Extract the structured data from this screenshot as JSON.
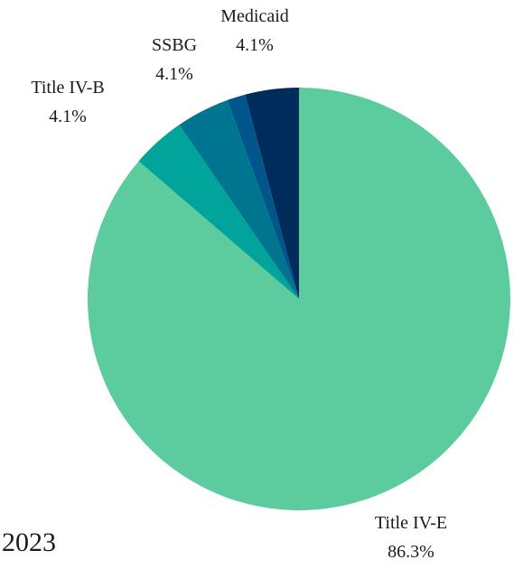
{
  "chart_data": {
    "type": "pie",
    "title": "2023",
    "categories": [
      "Title IV-E",
      "Title IV-B",
      "SSBG",
      null,
      "Medicaid"
    ],
    "values": [
      86.3,
      4.1,
      4.1,
      1.4,
      4.1
    ],
    "value_labels": [
      "86.3%",
      "4.1%",
      "4.1%",
      null,
      "4.1%"
    ],
    "colors": [
      "#5ccc9e",
      "#00a49a",
      "#00758f",
      "#00568a",
      "#002c5c"
    ]
  }
}
